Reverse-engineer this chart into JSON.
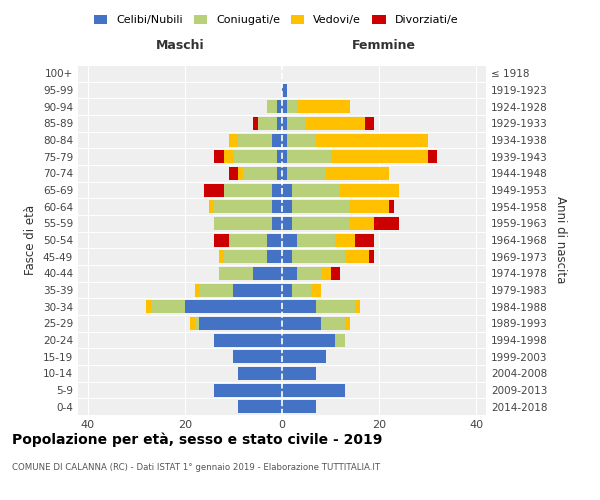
{
  "age_groups": [
    "0-4",
    "5-9",
    "10-14",
    "15-19",
    "20-24",
    "25-29",
    "30-34",
    "35-39",
    "40-44",
    "45-49",
    "50-54",
    "55-59",
    "60-64",
    "65-69",
    "70-74",
    "75-79",
    "80-84",
    "85-89",
    "90-94",
    "95-99",
    "100+"
  ],
  "birth_years": [
    "2014-2018",
    "2009-2013",
    "2004-2008",
    "1999-2003",
    "1994-1998",
    "1989-1993",
    "1984-1988",
    "1979-1983",
    "1974-1978",
    "1969-1973",
    "1964-1968",
    "1959-1963",
    "1954-1958",
    "1949-1953",
    "1944-1948",
    "1939-1943",
    "1934-1938",
    "1929-1933",
    "1924-1928",
    "1919-1923",
    "≤ 1918"
  ],
  "maschi": {
    "celibi": [
      9,
      14,
      9,
      10,
      14,
      17,
      20,
      10,
      6,
      3,
      3,
      2,
      2,
      2,
      1,
      1,
      2,
      1,
      1,
      0,
      0
    ],
    "coniugati": [
      0,
      0,
      0,
      0,
      0,
      1,
      7,
      7,
      7,
      9,
      8,
      12,
      12,
      10,
      7,
      9,
      7,
      4,
      2,
      0,
      0
    ],
    "vedovi": [
      0,
      0,
      0,
      0,
      0,
      1,
      1,
      1,
      0,
      1,
      0,
      0,
      1,
      0,
      1,
      2,
      2,
      0,
      0,
      0,
      0
    ],
    "divorziati": [
      0,
      0,
      0,
      0,
      0,
      0,
      0,
      0,
      0,
      0,
      3,
      0,
      0,
      4,
      2,
      2,
      0,
      1,
      0,
      0,
      0
    ]
  },
  "femmine": {
    "nubili": [
      7,
      13,
      7,
      9,
      11,
      8,
      7,
      2,
      3,
      2,
      3,
      2,
      2,
      2,
      1,
      1,
      1,
      1,
      1,
      1,
      0
    ],
    "coniugate": [
      0,
      0,
      0,
      0,
      2,
      5,
      8,
      4,
      5,
      11,
      8,
      12,
      12,
      10,
      8,
      9,
      6,
      4,
      2,
      0,
      0
    ],
    "vedove": [
      0,
      0,
      0,
      0,
      0,
      1,
      1,
      2,
      2,
      5,
      4,
      5,
      8,
      12,
      13,
      20,
      23,
      12,
      11,
      0,
      0
    ],
    "divorziate": [
      0,
      0,
      0,
      0,
      0,
      0,
      0,
      0,
      2,
      1,
      4,
      5,
      1,
      0,
      0,
      2,
      0,
      2,
      0,
      0,
      0
    ]
  },
  "colors": {
    "celibi_nubili": "#4472c4",
    "coniugati": "#b8d07a",
    "vedovi": "#ffc000",
    "divorziati": "#cc0000"
  },
  "xlim": 42,
  "title": "Popolazione per età, sesso e stato civile - 2019",
  "subtitle": "COMUNE DI CALANNA (RC) - Dati ISTAT 1° gennaio 2019 - Elaborazione TUTTITALIA.IT",
  "ylabel_left": "Fasce di età",
  "ylabel_right": "Anni di nascita",
  "xlabel_left": "Maschi",
  "xlabel_right": "Femmine",
  "legend_labels": [
    "Celibi/Nubili",
    "Coniugati/e",
    "Vedovi/e",
    "Divorziati/e"
  ],
  "background_color": "#efefef"
}
